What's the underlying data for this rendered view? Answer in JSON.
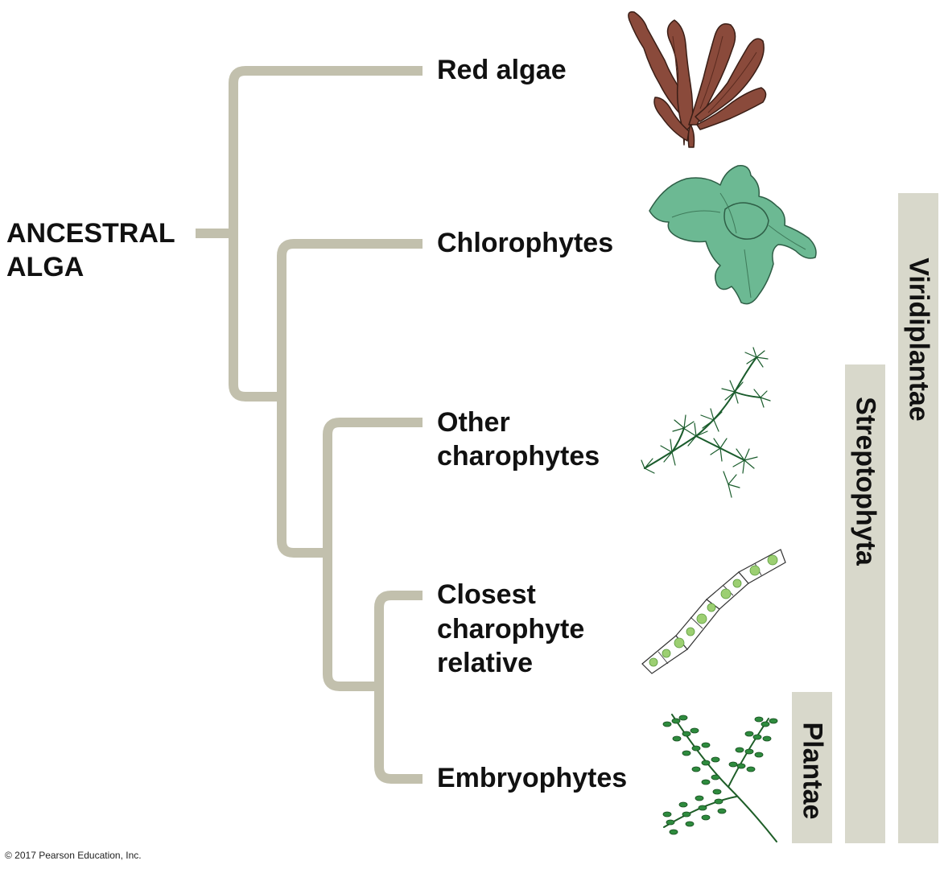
{
  "root_label": [
    "ANCESTRAL",
    "ALGA"
  ],
  "taxa": {
    "red_algae": [
      "Red algae"
    ],
    "chlorophytes": [
      "Chlorophytes"
    ],
    "other_charophytes": [
      "Other",
      "charophytes"
    ],
    "closest_relative": [
      "Closest",
      "charophyte",
      "relative"
    ],
    "embryophytes": [
      "Embryophytes"
    ]
  },
  "clade_bars": {
    "viridiplantae": "Viridiplantae",
    "streptophyta": "Streptophyta",
    "plantae": "Plantae"
  },
  "copyright": "© 2017 Pearson Education, Inc.",
  "colors": {
    "branch": "#c2c0ad",
    "bar": "#d8d8cb",
    "red_alga": "#8a4a3b",
    "chlorophyte": "#6cb993",
    "charophyte": "#1a5c2c",
    "filament_cell": "#9ccf72",
    "fern": "#2e8b3e"
  },
  "icons": [
    "red-alga-illustration",
    "chlorophyte-illustration",
    "charophyte-illustration",
    "filament-illustration",
    "fern-illustration"
  ]
}
